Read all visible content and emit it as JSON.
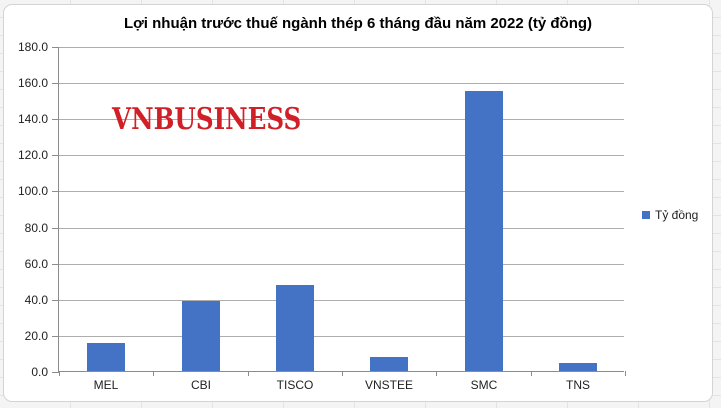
{
  "app": {
    "background_color": "#f3f3f3",
    "cell_line_color": "#e4e4e4"
  },
  "chart": {
    "title": "Lợi nhuận trước thuế ngành thép 6 tháng đầu năm 2022 (tỷ đồng)",
    "watermark_text": "VNBUSINESS",
    "legend": {
      "label": "Tỷ đồng"
    },
    "colors": {
      "bar": "#4472c4",
      "watermark_red": "#d01f27",
      "gridline": "#aeaeae",
      "axis_line": "#8c8c8c",
      "label_text": "#1f1f1f",
      "title_text": "#000000"
    }
  },
  "chart_data": {
    "type": "bar",
    "title": "Lợi nhuận trước thuế ngành thép 6 tháng đầu năm 2022 (tỷ đồng)",
    "categories": [
      "MEL",
      "CBI",
      "TISCO",
      "VNSTEE",
      "SMC",
      "TNS"
    ],
    "series": [
      {
        "name": "Tỷ đồng",
        "values": [
          15.5,
          39.0,
          47.5,
          8.0,
          155.0,
          4.5
        ]
      }
    ],
    "xlabel": "",
    "ylabel": "",
    "ylim": [
      0,
      180
    ],
    "ytick_step": 20,
    "ytick_labels": [
      "180.0",
      "160.0",
      "140.0",
      "120.0",
      "100.0",
      "80.0",
      "60.0",
      "40.0",
      "20.0",
      "0.0"
    ],
    "grid": true,
    "legend_position": "right-middle",
    "legend_entries": [
      "Tỷ đồng"
    ]
  }
}
